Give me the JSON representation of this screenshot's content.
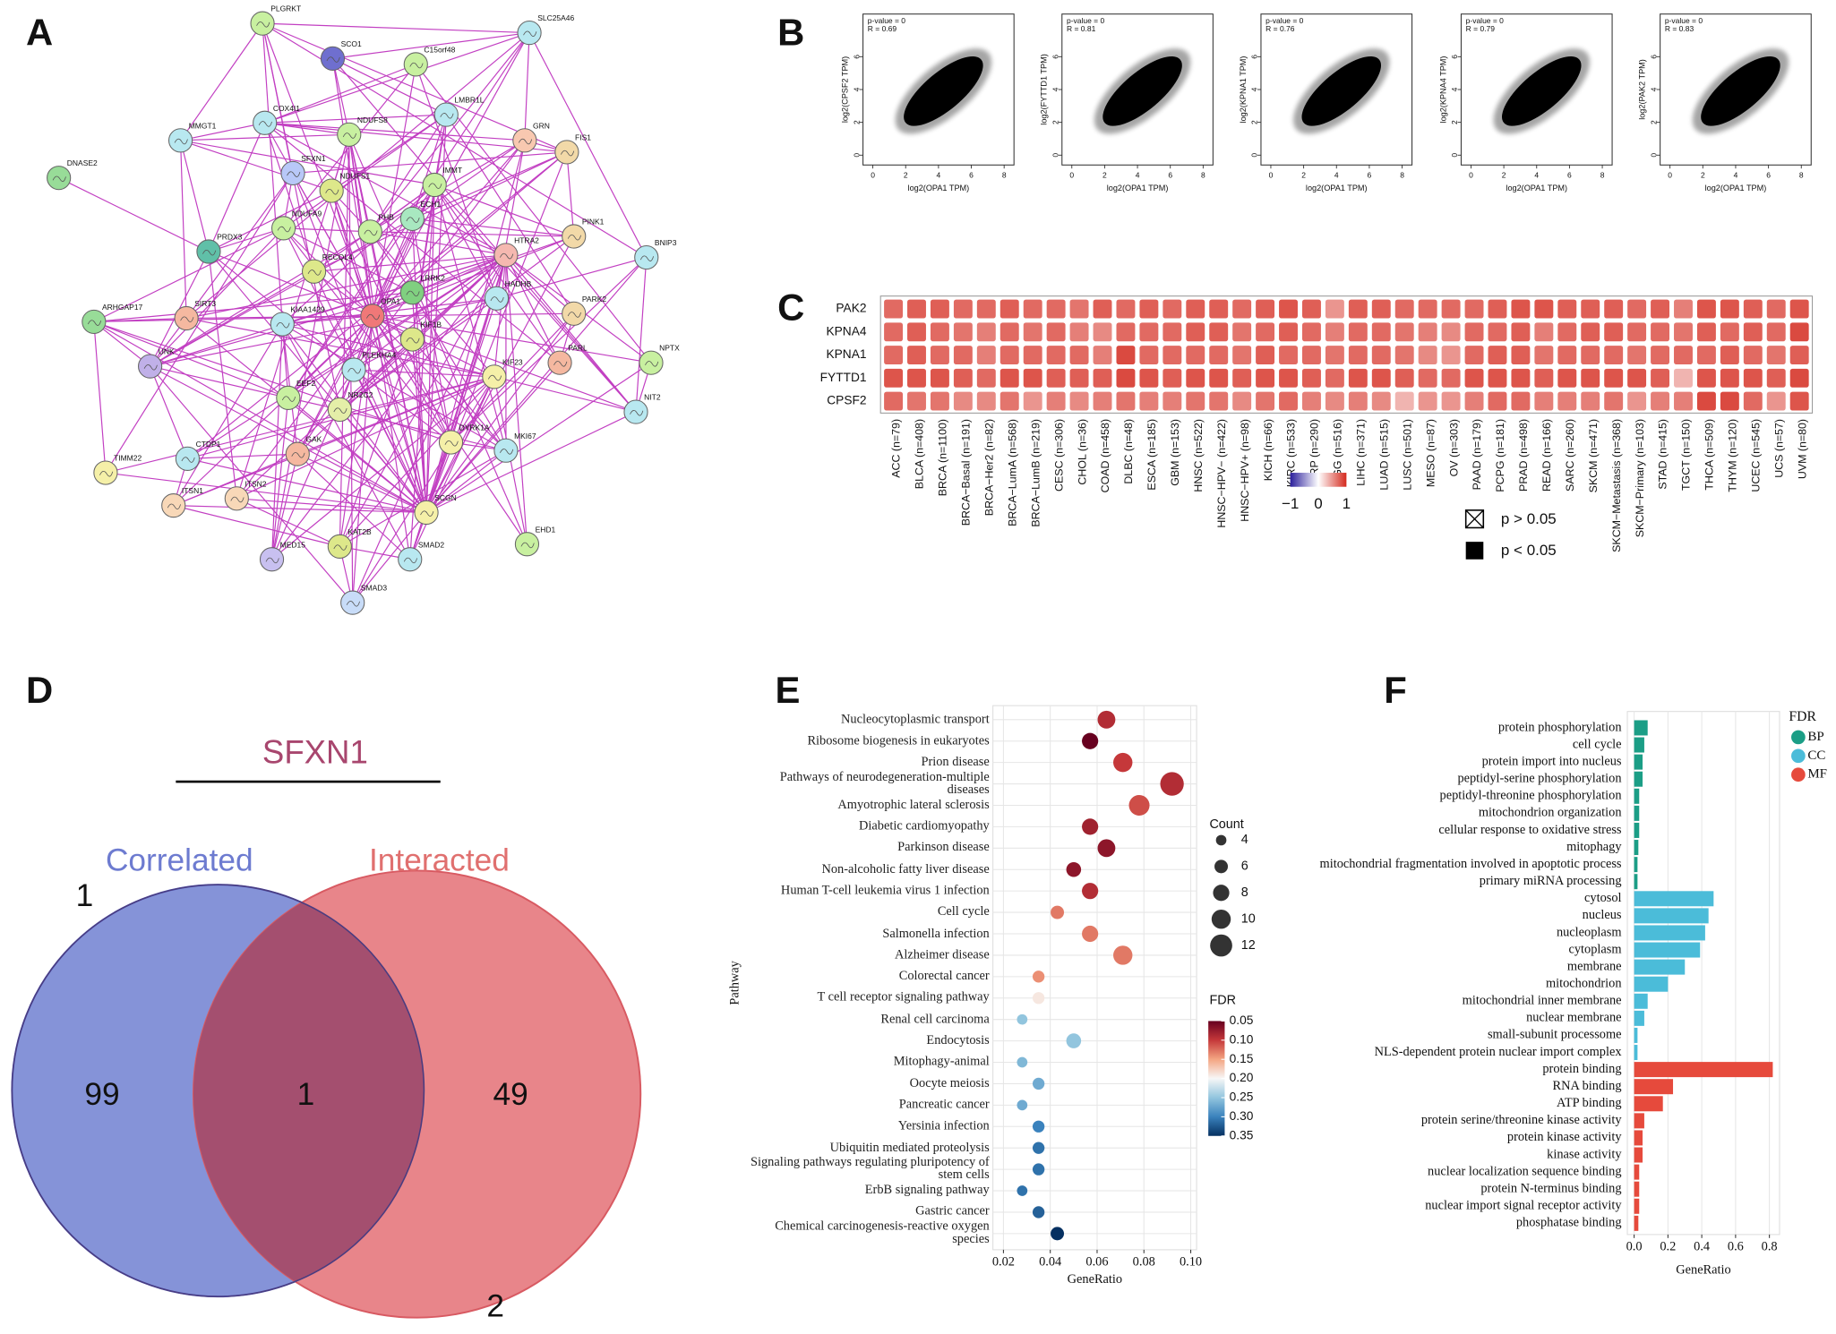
{
  "panel_labels": [
    "A",
    "B",
    "C",
    "D",
    "E",
    "F"
  ],
  "network": {
    "nodes": [
      {
        "label": "PLGRKT",
        "color": "#c8f0a0"
      },
      {
        "label": "SCO1",
        "color": "#6f6fcf"
      },
      {
        "label": "SLC25A46",
        "color": "#b8e8f0"
      },
      {
        "label": "C15orf48",
        "color": "#c8f0a0"
      },
      {
        "label": "MMGT1",
        "color": "#b8e8f0"
      },
      {
        "label": "COX4I1",
        "color": "#b8e8f0"
      },
      {
        "label": "NDUFS8",
        "color": "#c8f0a0"
      },
      {
        "label": "LMBR1L",
        "color": "#b8e8f0"
      },
      {
        "label": "GRN",
        "color": "#f8c8b0"
      },
      {
        "label": "FIS1",
        "color": "#f2d9a8"
      },
      {
        "label": "DNASE2",
        "color": "#98dc98"
      },
      {
        "label": "SFXN1",
        "color": "#b8c8f8"
      },
      {
        "label": "NDUFS1",
        "color": "#dde88a"
      },
      {
        "label": "IMMT",
        "color": "#c8f0a0"
      },
      {
        "label": "NDUFA9",
        "color": "#c8f0a0"
      },
      {
        "label": "PHB",
        "color": "#c8f0a0"
      },
      {
        "label": "ECH1",
        "color": "#a8e8c0"
      },
      {
        "label": "PINK1",
        "color": "#f2d9a8"
      },
      {
        "label": "BNIP3",
        "color": "#b8e8f0"
      },
      {
        "label": "PRDX3",
        "color": "#60c0a8"
      },
      {
        "label": "HTRA2",
        "color": "#f5b8b0"
      },
      {
        "label": "RECQL4",
        "color": "#dde88a"
      },
      {
        "label": "LRRK2",
        "color": "#80d080"
      },
      {
        "label": "HADHB",
        "color": "#b8e8f0"
      },
      {
        "label": "ARHGAP17",
        "color": "#98dc98"
      },
      {
        "label": "SIRT3",
        "color": "#f5b8a0"
      },
      {
        "label": "OPA1",
        "color": "#f07878"
      },
      {
        "label": "KIAA1429",
        "color": "#b8e8f0"
      },
      {
        "label": "PARK2",
        "color": "#f2d9a8"
      },
      {
        "label": "KIF1B",
        "color": "#dde88a"
      },
      {
        "label": "PLEKHA4",
        "color": "#b8e8f0"
      },
      {
        "label": "UNK",
        "color": "#c0b0e8"
      },
      {
        "label": "NPTX",
        "color": "#c8f0a0"
      },
      {
        "label": "PARL",
        "color": "#f5b8a0"
      },
      {
        "label": "KIF23",
        "color": "#f5f0a8"
      },
      {
        "label": "EEF2",
        "color": "#c8f0a0"
      },
      {
        "label": "NR2C2",
        "color": "#e4eea8"
      },
      {
        "label": "NIT2",
        "color": "#b8e8f0"
      },
      {
        "label": "DYRK1A",
        "color": "#f5f0a8"
      },
      {
        "label": "MKI67",
        "color": "#b8e8f0"
      },
      {
        "label": "CTDP1",
        "color": "#b8e8f0"
      },
      {
        "label": "GAK",
        "color": "#f5b8a0"
      },
      {
        "label": "TIMM22",
        "color": "#f5f0a8"
      },
      {
        "label": "ITSN1",
        "color": "#f8d8b8"
      },
      {
        "label": "ITSN2",
        "color": "#f8d8b8"
      },
      {
        "label": "SCGN",
        "color": "#f5f0a8"
      },
      {
        "label": "EHD1",
        "color": "#c8f0a0"
      },
      {
        "label": "MED15",
        "color": "#c8c0f0"
      },
      {
        "label": "KAT2B",
        "color": "#dde88a"
      },
      {
        "label": "SMAD2",
        "color": "#b8e8f0"
      },
      {
        "label": "SMAD3",
        "color": "#c8dcf8"
      }
    ]
  },
  "chart_data": [
    {
      "type": "scatter",
      "annotations": [
        "p-value = 0",
        "R = 0.69"
      ],
      "xlabel": "log2(OPA1 TPM)",
      "ylabel": "log2(CPSF2 TPM)",
      "xlim": [
        -0.6,
        8.6
      ],
      "xticks": [
        0,
        2,
        4,
        6,
        8
      ],
      "ylim": [
        -0.6,
        8.6
      ],
      "yticks": [
        0,
        2,
        4,
        6
      ]
    },
    {
      "type": "scatter",
      "annotations": [
        "p-value = 0",
        "R = 0.81"
      ],
      "xlabel": "log2(OPA1 TPM)",
      "ylabel": "log2(FYTTD1 TPM)",
      "xlim": [
        -0.6,
        8.6
      ],
      "xticks": [
        0,
        2,
        4,
        6,
        8
      ],
      "ylim": [
        -0.6,
        8.6
      ],
      "yticks": [
        0,
        2,
        4,
        6
      ]
    },
    {
      "type": "scatter",
      "annotations": [
        "p-value = 0",
        "R = 0.76"
      ],
      "xlabel": "log2(OPA1 TPM)",
      "ylabel": "log2(KPNA1 TPM)",
      "xlim": [
        -0.6,
        8.6
      ],
      "xticks": [
        0,
        2,
        4,
        6,
        8
      ],
      "ylim": [
        -0.6,
        8.6
      ],
      "yticks": [
        0,
        2,
        4,
        6
      ]
    },
    {
      "type": "scatter",
      "annotations": [
        "p-value = 0",
        "R = 0.79"
      ],
      "xlabel": "log2(OPA1 TPM)",
      "ylabel": "log2(KPNA4 TPM)",
      "xlim": [
        -0.6,
        8.6
      ],
      "xticks": [
        0,
        2,
        4,
        6,
        8
      ],
      "ylim": [
        -0.6,
        8.6
      ],
      "yticks": [
        0,
        2,
        4,
        6
      ]
    },
    {
      "type": "scatter",
      "annotations": [
        "p-value = 0",
        "R = 0.83"
      ],
      "xlabel": "log2(OPA1 TPM)",
      "ylabel": "log2(PAK2 TPM)",
      "xlim": [
        -0.6,
        8.6
      ],
      "xticks": [
        0,
        2,
        4,
        6,
        8
      ],
      "ylim": [
        -0.6,
        8.6
      ],
      "yticks": [
        0,
        2,
        4,
        6
      ]
    },
    {
      "type": "heatmap",
      "rows": [
        "PAK2",
        "KPNA4",
        "KPNA1",
        "FYTTD1",
        "CPSF2"
      ],
      "columns": [
        "ACC (n=79)",
        "BLCA (n=408)",
        "BRCA (n=1100)",
        "BRCA−Basal (n=191)",
        "BRCA−Her2 (n=82)",
        "BRCA−LumA (n=568)",
        "BRCA−LumB (n=219)",
        "CESC (n=306)",
        "CHOL (n=36)",
        "COAD (n=458)",
        "DLBC (n=48)",
        "ESCA (n=185)",
        "GBM (n=153)",
        "HNSC (n=522)",
        "HNSC−HPV− (n=422)",
        "HNSC−HPV+ (n=98)",
        "KICH (n=66)",
        "KIRC (n=533)",
        "KIRP (n=290)",
        "LGG (n=516)",
        "LIHC (n=371)",
        "LUAD (n=515)",
        "LUSC (n=501)",
        "MESO (n=87)",
        "OV (n=303)",
        "PAAD (n=179)",
        "PCPG (n=181)",
        "PRAD (n=498)",
        "READ (n=166)",
        "SARC (n=260)",
        "SKCM (n=471)",
        "SKCM−Metastasis (n=368)",
        "SKCM−Primary (n=103)",
        "STAD (n=415)",
        "TGCT (n=150)",
        "THCA (n=509)",
        "THYM (n=120)",
        "UCEC (n=545)",
        "UCS (n=57)",
        "UVM (n=80)"
      ],
      "values": [
        [
          0.7,
          0.75,
          0.75,
          0.7,
          0.7,
          0.75,
          0.7,
          0.7,
          0.65,
          0.75,
          0.7,
          0.75,
          0.7,
          0.75,
          0.75,
          0.7,
          0.75,
          0.8,
          0.75,
          0.5,
          0.75,
          0.75,
          0.7,
          0.7,
          0.7,
          0.7,
          0.75,
          0.8,
          0.8,
          0.75,
          0.75,
          0.75,
          0.7,
          0.75,
          0.6,
          0.8,
          0.8,
          0.75,
          0.7,
          0.8
        ],
        [
          0.7,
          0.75,
          0.7,
          0.65,
          0.6,
          0.7,
          0.65,
          0.7,
          0.6,
          0.55,
          0.7,
          0.7,
          0.7,
          0.75,
          0.75,
          0.65,
          0.7,
          0.75,
          0.7,
          0.6,
          0.7,
          0.7,
          0.65,
          0.6,
          0.55,
          0.7,
          0.7,
          0.75,
          0.6,
          0.7,
          0.75,
          0.75,
          0.7,
          0.7,
          0.65,
          0.75,
          0.7,
          0.75,
          0.7,
          0.85
        ],
        [
          0.7,
          0.75,
          0.7,
          0.7,
          0.6,
          0.7,
          0.7,
          0.7,
          0.7,
          0.6,
          0.85,
          0.7,
          0.7,
          0.7,
          0.7,
          0.65,
          0.75,
          0.7,
          0.7,
          0.65,
          0.7,
          0.7,
          0.65,
          0.55,
          0.5,
          0.7,
          0.75,
          0.75,
          0.65,
          0.7,
          0.7,
          0.7,
          0.65,
          0.7,
          0.7,
          0.7,
          0.75,
          0.7,
          0.65,
          0.75
        ],
        [
          0.8,
          0.8,
          0.8,
          0.75,
          0.7,
          0.8,
          0.8,
          0.75,
          0.75,
          0.75,
          0.85,
          0.8,
          0.75,
          0.8,
          0.8,
          0.75,
          0.8,
          0.8,
          0.75,
          0.7,
          0.8,
          0.8,
          0.75,
          0.7,
          0.7,
          0.8,
          0.8,
          0.8,
          0.75,
          0.8,
          0.8,
          0.8,
          0.8,
          0.75,
          0.35,
          0.8,
          0.8,
          0.8,
          0.75,
          0.85
        ],
        [
          0.7,
          0.65,
          0.65,
          0.55,
          0.55,
          0.65,
          0.5,
          0.6,
          0.55,
          0.6,
          0.65,
          0.6,
          0.6,
          0.65,
          0.65,
          0.55,
          0.65,
          0.7,
          0.6,
          0.55,
          0.6,
          0.55,
          0.35,
          0.5,
          0.5,
          0.6,
          0.7,
          0.7,
          0.6,
          0.6,
          0.6,
          0.65,
          0.5,
          0.6,
          0.6,
          0.85,
          0.85,
          0.7,
          0.5,
          0.8
        ]
      ],
      "colors": [
        "#2b1f9c",
        "#ffffff",
        "#d42a1e"
      ],
      "colorbar_lim": [
        -1,
        1
      ],
      "colorbar_ticks": [
        {
          "value": -1,
          "label": "−1"
        },
        0,
        1
      ],
      "legend": [
        "p > 0.05",
        "p < 0.05"
      ]
    },
    {
      "type": "venn",
      "title": "SFXN1",
      "sets": [
        {
          "name": "Correlated",
          "label": "1",
          "color": "#8593d8"
        },
        {
          "name": "Interacted",
          "label": "2",
          "color": "#e8858a"
        }
      ],
      "values": [
        99,
        1,
        49
      ],
      "overlap_color": "#a44f6f"
    },
    {
      "type": "bubble",
      "ylabel": "Pathway",
      "xlabel": "GeneRatio",
      "categories": [
        "Nucleocytoplasmic transport",
        "Ribosome biogenesis in eukaryotes",
        "Prion disease",
        "Pathways of neurodegeneration-multiple diseases",
        "Amyotrophic lateral sclerosis",
        "Diabetic cardiomyopathy",
        "Parkinson disease",
        "Non-alcoholic fatty liver disease",
        "Human T-cell leukemia virus 1 infection",
        "Cell cycle",
        "Salmonella infection",
        "Alzheimer disease",
        "Colorectal cancer",
        "T cell receptor signaling pathway",
        "Renal cell carcinoma",
        "Endocytosis",
        "Mitophagy-animal",
        "Oocyte meiosis",
        "Pancreatic cancer",
        "Yersinia infection",
        "Ubiquitin mediated proteolysis",
        "Signaling pathways regulating pluripotency of stem cells",
        "ErbB signaling pathway",
        "Gastric cancer",
        "Chemical carcinogenesis-reactive oxygen species"
      ],
      "x": [
        0.064,
        0.057,
        0.071,
        0.092,
        0.078,
        0.057,
        0.064,
        0.05,
        0.057,
        0.043,
        0.057,
        0.071,
        0.035,
        0.035,
        0.028,
        0.05,
        0.028,
        0.035,
        0.028,
        0.035,
        0.035,
        0.035,
        0.028,
        0.035,
        0.043
      ],
      "sizes": [
        9,
        8,
        10,
        13,
        11,
        8,
        9,
        7,
        8,
        6,
        8,
        10,
        5,
        5,
        4,
        7,
        4,
        5,
        4,
        5,
        5,
        5,
        4,
        5,
        6
      ],
      "fdr": [
        0.09,
        0.05,
        0.1,
        0.09,
        0.11,
        0.08,
        0.07,
        0.07,
        0.09,
        0.13,
        0.13,
        0.13,
        0.14,
        0.19,
        0.25,
        0.25,
        0.26,
        0.27,
        0.27,
        0.3,
        0.31,
        0.31,
        0.31,
        0.32,
        0.35
      ],
      "xlim": [
        0.0155,
        0.1025
      ],
      "xticks": [
        0.02,
        0.04,
        0.06,
        0.08,
        {
          "value": 0.1,
          "label": "0.10"
        }
      ],
      "grid": true,
      "size_legend": {
        "title": "Count",
        "values": [
          4,
          6,
          8,
          10,
          12
        ]
      },
      "color_legend": {
        "title": "FDR",
        "lim": [
          0.03,
          0.36
        ],
        "ticks": [
          0.05,
          {
            "value": 0.1,
            "label": "0.10"
          },
          0.15,
          {
            "value": 0.2,
            "label": "0.20"
          },
          0.25,
          {
            "value": 0.3,
            "label": "0.30"
          },
          0.35
        ],
        "colors": [
          "#67001f",
          "#c5383a",
          "#f4a582",
          "#f7f7f7",
          "#92c5de",
          "#3a82bd",
          "#053061"
        ]
      }
    },
    {
      "type": "barh",
      "xlabel": "GeneRatio",
      "legend_title": "FDR",
      "xlim": [
        -0.04,
        0.86
      ],
      "xticks": [
        {
          "value": 0,
          "label": "0.0"
        },
        0.2,
        0.4,
        0.6,
        0.8
      ],
      "grid": true,
      "series": [
        {
          "name": "BP",
          "color": "#1b9e86",
          "categories": [
            "protein phosphorylation",
            "cell cycle",
            "protein import into nucleus",
            "peptidyl-serine phosphorylation",
            "peptidyl-threonine phosphorylation",
            "mitochondrion organization",
            "cellular response to oxidative stress",
            "mitophagy",
            "mitochondrial fragmentation involved in apoptotic process",
            "primary miRNA processing"
          ],
          "values": [
            0.08,
            0.06,
            0.05,
            0.05,
            0.03,
            0.03,
            0.03,
            0.025,
            0.02,
            0.02
          ]
        },
        {
          "name": "CC",
          "color": "#4bbcd9",
          "categories": [
            "cytosol",
            "nucleus",
            "nucleoplasm",
            "cytoplasm",
            "membrane",
            "mitochondrion",
            "mitochondrial inner membrane",
            "nuclear membrane",
            "small-subunit processome",
            "NLS-dependent protein nuclear import complex"
          ],
          "values": [
            0.47,
            0.44,
            0.42,
            0.39,
            0.3,
            0.2,
            0.08,
            0.06,
            0.02,
            0.02
          ]
        },
        {
          "name": "MF",
          "color": "#e64a3c",
          "categories": [
            "protein binding",
            "RNA binding",
            "ATP binding",
            "protein serine/threonine kinase activity",
            "protein kinase activity",
            "kinase activity",
            "nuclear localization sequence binding",
            "protein N-terminus binding",
            "nuclear import signal receptor activity",
            "phosphatase binding"
          ],
          "values": [
            0.82,
            0.23,
            0.17,
            0.06,
            0.05,
            0.05,
            0.03,
            0.03,
            0.03,
            0.025
          ]
        }
      ]
    }
  ]
}
